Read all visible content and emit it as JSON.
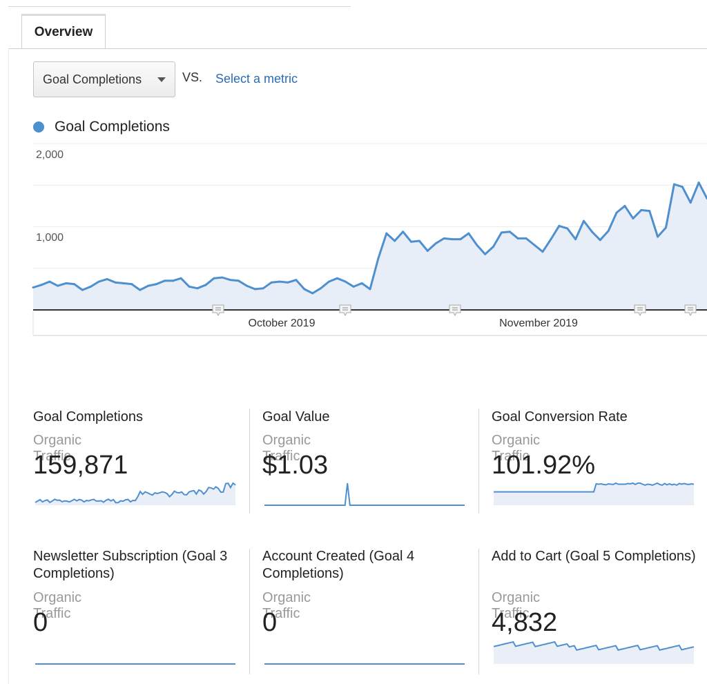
{
  "tabs": [
    {
      "label": "Overview"
    }
  ],
  "metric_selector": {
    "selected": "Goal Completions",
    "vs_label": "VS.",
    "compare_link": "Select a metric"
  },
  "colors": {
    "series": "#4e8fd0",
    "fill": "#e8eef7",
    "link": "#2b6bb5"
  },
  "icons": {
    "annotation": "annotation-icon",
    "dropdown": "chevron-down-icon",
    "legend": "legend-dot"
  },
  "chart_data": {
    "type": "area",
    "title": "",
    "ylim": [
      0,
      2000
    ],
    "yticks": [
      "2,000",
      "1,000"
    ],
    "xlabels": [
      "October 2019",
      "November 2019"
    ],
    "grid": true,
    "legend_position": "top-left",
    "series": [
      {
        "name": "Goal Completions",
        "values": [
          270,
          300,
          340,
          290,
          320,
          310,
          240,
          280,
          340,
          370,
          330,
          320,
          310,
          240,
          290,
          310,
          350,
          350,
          380,
          280,
          260,
          300,
          380,
          390,
          360,
          350,
          290,
          250,
          260,
          330,
          340,
          330,
          360,
          250,
          200,
          260,
          340,
          380,
          340,
          280,
          320,
          250,
          620,
          920,
          830,
          940,
          820,
          830,
          710,
          800,
          860,
          850,
          850,
          920,
          780,
          670,
          760,
          930,
          940,
          860,
          860,
          780,
          700,
          850,
          1010,
          980,
          850,
          1070,
          940,
          840,
          950,
          1170,
          1250,
          1100,
          1200,
          1190,
          880,
          990,
          1510,
          1480,
          1290,
          1530,
          1340
        ]
      }
    ]
  },
  "cards": [
    {
      "title": "Goal Completions",
      "segment": "Organic Traffic",
      "value": "159,871"
    },
    {
      "title": "Goal Value",
      "segment": "Organic Traffic",
      "value": "$1.03"
    },
    {
      "title": "Goal Conversion Rate",
      "segment": "Organic Traffic",
      "value": "101.92%"
    },
    {
      "title": "Newsletter Subscription (Goal 3 Completions)",
      "segment": "Organic Traffic",
      "value": "0"
    },
    {
      "title": "Account Created (Goal 4 Completions)",
      "segment": "Organic Traffic",
      "value": "0"
    },
    {
      "title": "Add to Cart (Goal 5 Completions)",
      "segment": "Organic Traffic",
      "value": "4,832"
    }
  ]
}
